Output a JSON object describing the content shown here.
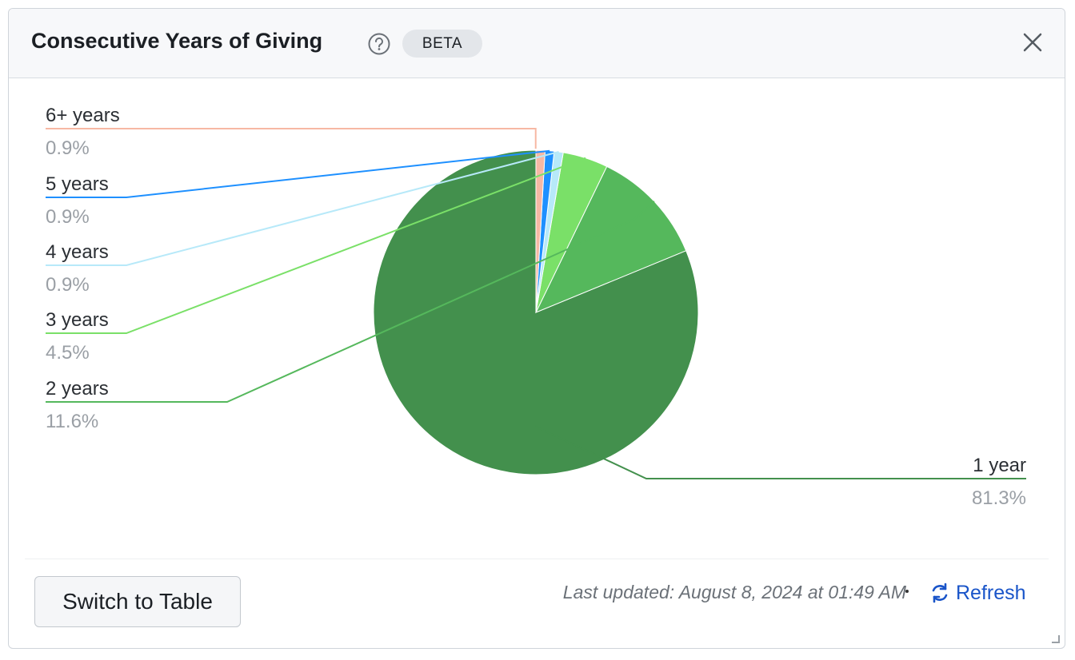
{
  "header": {
    "title": "Consecutive Years of Giving",
    "badge": "BETA",
    "help_icon": "question-circle-icon",
    "close_icon": "close-icon"
  },
  "chart_data": {
    "type": "pie",
    "title": "",
    "start_angle_deg": 0,
    "direction": "counterclockwise",
    "slices": [
      {
        "label": "1 year",
        "value": 81.3,
        "display": "81.3%",
        "color": "#43904d"
      },
      {
        "label": "2 years",
        "value": 11.6,
        "display": "11.6%",
        "color": "#55b85c"
      },
      {
        "label": "3 years",
        "value": 4.5,
        "display": "4.5%",
        "color": "#7ae068"
      },
      {
        "label": "4 years",
        "value": 0.9,
        "display": "0.9%",
        "color": "#b7e9f9"
      },
      {
        "label": "5 years",
        "value": 0.9,
        "display": "0.9%",
        "color": "#1e90ff"
      },
      {
        "label": "6+ years",
        "value": 0.9,
        "display": "0.9%",
        "color": "#f7b8a4"
      }
    ],
    "label_placement": "outside-with-leader-lines"
  },
  "footer": {
    "switch_label": "Switch to Table",
    "last_updated": "Last updated: August 8, 2024 at 01:49 AM",
    "refresh_label": "Refresh",
    "refresh_icon": "refresh-icon",
    "link_color": "#1a55c9"
  }
}
